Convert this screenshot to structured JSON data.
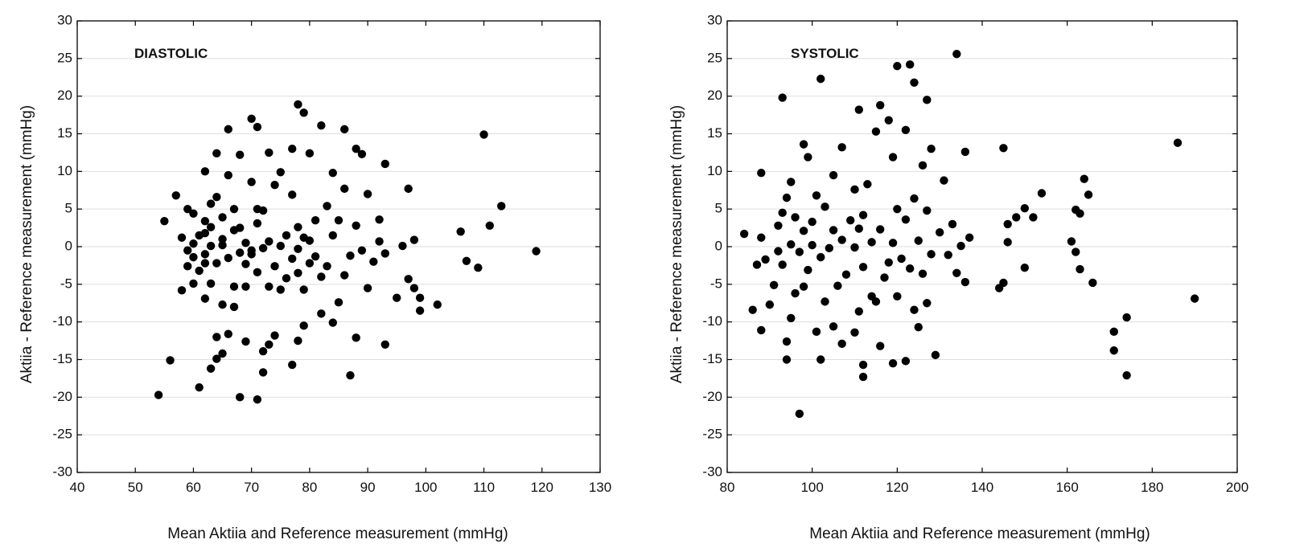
{
  "chart_data": [
    {
      "type": "scatter",
      "panel_label": "DIASTOLIC",
      "xlabel": "Mean Aktiia and Reference measurement (mmHg)",
      "ylabel": "Aktiia - Reference measurement (mmHg)",
      "xlim": [
        40,
        130
      ],
      "ylim": [
        -30,
        30
      ],
      "xticks": [
        40,
        50,
        60,
        70,
        80,
        90,
        100,
        110,
        120,
        130
      ],
      "yticks": [
        -30,
        -25,
        -20,
        -15,
        -10,
        -5,
        0,
        5,
        10,
        15,
        20,
        25,
        30
      ],
      "grid": "horizontal",
      "points": [
        [
          54,
          -19.7
        ],
        [
          55,
          3.4
        ],
        [
          56,
          -15.1
        ],
        [
          57,
          6.8
        ],
        [
          58,
          -5.8
        ],
        [
          58,
          1.2
        ],
        [
          59,
          5.0
        ],
        [
          59,
          -0.5
        ],
        [
          59,
          -2.6
        ],
        [
          60,
          -4.9
        ],
        [
          60,
          4.4
        ],
        [
          60,
          -1.4
        ],
        [
          60,
          0.4
        ],
        [
          61,
          -18.7
        ],
        [
          61,
          -3.2
        ],
        [
          61,
          1.5
        ],
        [
          62,
          10.0
        ],
        [
          62,
          3.4
        ],
        [
          62,
          -1.0
        ],
        [
          62,
          -6.9
        ],
        [
          62,
          1.8
        ],
        [
          62,
          -2.2
        ],
        [
          63,
          -16.2
        ],
        [
          63,
          -4.9
        ],
        [
          63,
          5.7
        ],
        [
          63,
          0.1
        ],
        [
          63,
          2.6
        ],
        [
          64,
          12.4
        ],
        [
          64,
          -12.0
        ],
        [
          64,
          -14.9
        ],
        [
          64,
          6.6
        ],
        [
          64,
          -2.2
        ],
        [
          65,
          -14.2
        ],
        [
          65,
          -7.7
        ],
        [
          65,
          3.9
        ],
        [
          65,
          1.0
        ],
        [
          65,
          0.2
        ],
        [
          66,
          15.6
        ],
        [
          66,
          -11.6
        ],
        [
          66,
          9.5
        ],
        [
          66,
          -1.5
        ],
        [
          67,
          -8.0
        ],
        [
          67,
          5.0
        ],
        [
          67,
          2.2
        ],
        [
          67,
          -5.3
        ],
        [
          68,
          12.2
        ],
        [
          68,
          -20.0
        ],
        [
          68,
          -0.8
        ],
        [
          68,
          2.5
        ],
        [
          69,
          -12.6
        ],
        [
          69,
          -5.3
        ],
        [
          69,
          0.5
        ],
        [
          69,
          -2.3
        ],
        [
          70,
          17.0
        ],
        [
          70,
          8.6
        ],
        [
          70,
          -0.5
        ],
        [
          70,
          -1.0
        ],
        [
          71,
          -20.3
        ],
        [
          71,
          15.9
        ],
        [
          71,
          5.0
        ],
        [
          71,
          -3.4
        ],
        [
          71,
          3.1
        ],
        [
          72,
          -16.7
        ],
        [
          72,
          -13.9
        ],
        [
          72,
          4.8
        ],
        [
          72,
          -0.2
        ],
        [
          73,
          12.5
        ],
        [
          73,
          -13.0
        ],
        [
          73,
          0.7
        ],
        [
          73,
          -5.3
        ],
        [
          74,
          8.2
        ],
        [
          74,
          -2.6
        ],
        [
          74,
          -11.8
        ],
        [
          75,
          -5.7
        ],
        [
          75,
          9.9
        ],
        [
          75,
          0.1
        ],
        [
          76,
          -4.2
        ],
        [
          76,
          1.5
        ],
        [
          77,
          -15.7
        ],
        [
          77,
          13.0
        ],
        [
          77,
          6.9
        ],
        [
          77,
          -1.6
        ],
        [
          78,
          18.9
        ],
        [
          78,
          -12.5
        ],
        [
          78,
          2.6
        ],
        [
          78,
          -3.5
        ],
        [
          78,
          -0.3
        ],
        [
          79,
          17.8
        ],
        [
          79,
          -10.5
        ],
        [
          79,
          -5.7
        ],
        [
          79,
          1.2
        ],
        [
          80,
          12.4
        ],
        [
          80,
          -2.2
        ],
        [
          80,
          0.8
        ],
        [
          81,
          -1.3
        ],
        [
          81,
          3.5
        ],
        [
          82,
          16.1
        ],
        [
          82,
          -8.9
        ],
        [
          82,
          -4.0
        ],
        [
          83,
          5.4
        ],
        [
          83,
          -2.6
        ],
        [
          84,
          9.8
        ],
        [
          84,
          -10.1
        ],
        [
          84,
          1.5
        ],
        [
          85,
          -7.4
        ],
        [
          85,
          3.5
        ],
        [
          86,
          15.6
        ],
        [
          86,
          -3.8
        ],
        [
          86,
          7.7
        ],
        [
          87,
          -17.1
        ],
        [
          87,
          -1.2
        ],
        [
          88,
          -12.1
        ],
        [
          88,
          13.0
        ],
        [
          88,
          2.8
        ],
        [
          89,
          12.3
        ],
        [
          89,
          -0.5
        ],
        [
          90,
          7.0
        ],
        [
          90,
          -5.5
        ],
        [
          91,
          -2.0
        ],
        [
          92,
          3.6
        ],
        [
          92,
          0.7
        ],
        [
          93,
          -13.0
        ],
        [
          93,
          11.0
        ],
        [
          93,
          -0.9
        ],
        [
          95,
          -6.8
        ],
        [
          96,
          0.1
        ],
        [
          97,
          7.7
        ],
        [
          97,
          -4.3
        ],
        [
          98,
          -5.5
        ],
        [
          98,
          0.9
        ],
        [
          99,
          -6.8
        ],
        [
          99,
          -8.5
        ],
        [
          102,
          -7.7
        ],
        [
          106,
          2.0
        ],
        [
          107,
          -1.9
        ],
        [
          109,
          -2.8
        ],
        [
          110,
          14.9
        ],
        [
          111,
          2.8
        ],
        [
          113,
          5.4
        ],
        [
          119,
          -0.6
        ]
      ]
    },
    {
      "type": "scatter",
      "panel_label": "SYSTOLIC",
      "xlabel": "Mean Aktiia and Reference measurement (mmHg)",
      "ylabel": "Aktiia - Reference measurement (mmHg)",
      "xlim": [
        80,
        200
      ],
      "ylim": [
        -30,
        30
      ],
      "xticks": [
        80,
        100,
        120,
        140,
        160,
        180,
        200
      ],
      "yticks": [
        -30,
        -25,
        -20,
        -15,
        -10,
        -5,
        0,
        5,
        10,
        15,
        20,
        25,
        30
      ],
      "grid": "horizontal",
      "points": [
        [
          84,
          1.7
        ],
        [
          86,
          -8.4
        ],
        [
          87,
          -2.4
        ],
        [
          88,
          9.8
        ],
        [
          88,
          -11.1
        ],
        [
          88,
          1.2
        ],
        [
          89,
          -1.7
        ],
        [
          90,
          -7.7
        ],
        [
          91,
          -5.1
        ],
        [
          92,
          2.8
        ],
        [
          92,
          -0.6
        ],
        [
          93,
          19.8
        ],
        [
          93,
          4.5
        ],
        [
          93,
          -2.4
        ],
        [
          94,
          -15.0
        ],
        [
          94,
          6.5
        ],
        [
          94,
          -12.6
        ],
        [
          95,
          8.6
        ],
        [
          95,
          -9.5
        ],
        [
          95,
          0.3
        ],
        [
          96,
          3.9
        ],
        [
          96,
          -6.2
        ],
        [
          97,
          -22.2
        ],
        [
          97,
          -0.7
        ],
        [
          98,
          13.6
        ],
        [
          98,
          -5.3
        ],
        [
          98,
          2.1
        ],
        [
          99,
          11.9
        ],
        [
          99,
          -3.1
        ],
        [
          100,
          3.3
        ],
        [
          100,
          0.2
        ],
        [
          101,
          -11.3
        ],
        [
          101,
          6.8
        ],
        [
          102,
          22.3
        ],
        [
          102,
          -15.0
        ],
        [
          102,
          -1.4
        ],
        [
          103,
          5.3
        ],
        [
          103,
          -7.3
        ],
        [
          104,
          -0.2
        ],
        [
          105,
          9.5
        ],
        [
          105,
          -10.6
        ],
        [
          105,
          2.2
        ],
        [
          106,
          -5.2
        ],
        [
          107,
          13.2
        ],
        [
          107,
          -12.9
        ],
        [
          107,
          0.9
        ],
        [
          108,
          -3.7
        ],
        [
          109,
          3.5
        ],
        [
          110,
          -11.4
        ],
        [
          110,
          7.6
        ],
        [
          110,
          -0.1
        ],
        [
          111,
          18.2
        ],
        [
          111,
          -8.6
        ],
        [
          111,
          2.4
        ],
        [
          112,
          -17.3
        ],
        [
          112,
          -15.7
        ],
        [
          112,
          4.2
        ],
        [
          112,
          -2.7
        ],
        [
          113,
          8.3
        ],
        [
          114,
          -6.6
        ],
        [
          114,
          0.6
        ],
        [
          115,
          15.3
        ],
        [
          115,
          -7.3
        ],
        [
          116,
          18.8
        ],
        [
          116,
          -13.2
        ],
        [
          116,
          2.3
        ],
        [
          117,
          -4.1
        ],
        [
          118,
          16.8
        ],
        [
          118,
          -2.1
        ],
        [
          119,
          11.9
        ],
        [
          119,
          -15.5
        ],
        [
          119,
          0.5
        ],
        [
          120,
          24.0
        ],
        [
          120,
          -6.6
        ],
        [
          120,
          5.0
        ],
        [
          121,
          -1.6
        ],
        [
          122,
          15.5
        ],
        [
          122,
          -15.2
        ],
        [
          122,
          3.6
        ],
        [
          123,
          24.2
        ],
        [
          123,
          -2.9
        ],
        [
          124,
          21.8
        ],
        [
          124,
          -8.4
        ],
        [
          124,
          6.4
        ],
        [
          125,
          -10.7
        ],
        [
          125,
          0.8
        ],
        [
          126,
          10.8
        ],
        [
          126,
          -3.6
        ],
        [
          127,
          19.5
        ],
        [
          127,
          4.8
        ],
        [
          127,
          -7.5
        ],
        [
          128,
          13.0
        ],
        [
          128,
          -1.0
        ],
        [
          129,
          -14.4
        ],
        [
          130,
          1.9
        ],
        [
          131,
          8.8
        ],
        [
          132,
          -1.1
        ],
        [
          133,
          3.0
        ],
        [
          134,
          25.6
        ],
        [
          134,
          -3.5
        ],
        [
          135,
          0.1
        ],
        [
          136,
          12.6
        ],
        [
          136,
          -4.7
        ],
        [
          137,
          1.2
        ],
        [
          144,
          -5.5
        ],
        [
          145,
          -4.8
        ],
        [
          145,
          13.1
        ],
        [
          146,
          3.0
        ],
        [
          146,
          0.6
        ],
        [
          148,
          3.9
        ],
        [
          150,
          5.1
        ],
        [
          150,
          -2.8
        ],
        [
          152,
          3.9
        ],
        [
          154,
          7.1
        ],
        [
          161,
          0.7
        ],
        [
          162,
          -0.7
        ],
        [
          162,
          4.9
        ],
        [
          163,
          -3.0
        ],
        [
          163,
          4.4
        ],
        [
          164,
          9.0
        ],
        [
          165,
          6.9
        ],
        [
          166,
          -4.8
        ],
        [
          171,
          -11.3
        ],
        [
          171,
          -13.8
        ],
        [
          174,
          -9.4
        ],
        [
          174,
          -17.1
        ],
        [
          186,
          13.8
        ],
        [
          190,
          -6.9
        ]
      ]
    }
  ]
}
